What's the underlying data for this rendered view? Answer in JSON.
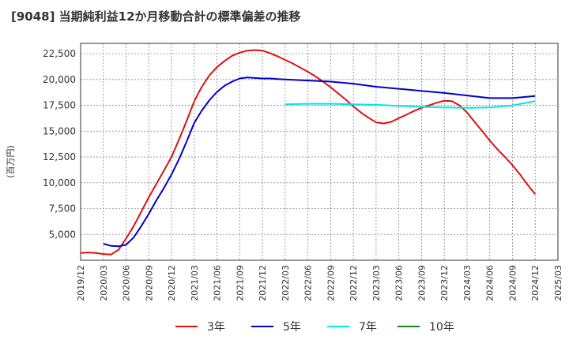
{
  "chart_data": {
    "type": "line",
    "title": "[9048]  当期純利益12か月移動合計の標準偏差の推移",
    "ylabel": "(百万円)",
    "xlabel": "",
    "ylim": [
      2500,
      23500
    ],
    "x_ticks": [
      "2019/12",
      "2020/03",
      "2020/06",
      "2020/09",
      "2020/12",
      "2021/03",
      "2021/06",
      "2021/09",
      "2021/12",
      "2022/03",
      "2022/06",
      "2022/09",
      "2022/12",
      "2023/03",
      "2023/06",
      "2023/09",
      "2023/12",
      "2024/03",
      "2024/06",
      "2024/09",
      "2024/12",
      "2025/03"
    ],
    "y_ticks": [
      5000,
      7500,
      10000,
      12500,
      15000,
      17500,
      20000,
      22500
    ],
    "y_tick_labels": [
      "5,000",
      "7,500",
      "10,000",
      "12,500",
      "15,000",
      "17,500",
      "20,000",
      "22,500"
    ],
    "grid": true,
    "legend_position": "bottom",
    "series": [
      {
        "name": "3年",
        "color": "#dd1111",
        "x": [
          "2019/12",
          "2020/01",
          "2020/02",
          "2020/03",
          "2020/04",
          "2020/05",
          "2020/06",
          "2020/07",
          "2020/08",
          "2020/09",
          "2020/10",
          "2020/11",
          "2020/12",
          "2021/01",
          "2021/02",
          "2021/03",
          "2021/04",
          "2021/05",
          "2021/06",
          "2021/07",
          "2021/08",
          "2021/09",
          "2021/10",
          "2021/11",
          "2021/12",
          "2022/01",
          "2022/02",
          "2022/03",
          "2022/04",
          "2022/05",
          "2022/06",
          "2022/07",
          "2022/08",
          "2022/09",
          "2022/10",
          "2022/11",
          "2022/12",
          "2023/01",
          "2023/02",
          "2023/03",
          "2023/04",
          "2023/05",
          "2023/06",
          "2023/07",
          "2023/08",
          "2023/09",
          "2023/10",
          "2023/11",
          "2023/12",
          "2024/01",
          "2024/02",
          "2024/03",
          "2024/04",
          "2024/05",
          "2024/06",
          "2024/07",
          "2024/08",
          "2024/09",
          "2024/10",
          "2024/11",
          "2024/12"
        ],
        "values": [
          3200,
          3250,
          3200,
          3100,
          3050,
          3500,
          4600,
          5800,
          7200,
          8600,
          9900,
          11200,
          12500,
          14200,
          16000,
          17900,
          19300,
          20400,
          21200,
          21800,
          22300,
          22600,
          22800,
          22850,
          22800,
          22550,
          22250,
          21900,
          21550,
          21150,
          20750,
          20300,
          19800,
          19250,
          18650,
          18050,
          17400,
          16800,
          16300,
          15850,
          15750,
          15900,
          16250,
          16600,
          16950,
          17250,
          17500,
          17750,
          17950,
          17900,
          17500,
          16800,
          15900,
          15000,
          14100,
          13250,
          12500,
          11700,
          10800,
          9800,
          8900
        ]
      },
      {
        "name": "5年",
        "color": "#0000cc",
        "x": [
          "2020/03",
          "2020/04",
          "2020/05",
          "2020/06",
          "2020/07",
          "2020/08",
          "2020/09",
          "2020/10",
          "2020/11",
          "2020/12",
          "2021/01",
          "2021/02",
          "2021/03",
          "2021/04",
          "2021/05",
          "2021/06",
          "2021/07",
          "2021/08",
          "2021/09",
          "2021/10",
          "2021/11",
          "2021/12",
          "2022/01",
          "2022/02",
          "2022/03",
          "2022/06",
          "2022/09",
          "2022/12",
          "2023/03",
          "2023/06",
          "2023/09",
          "2023/12",
          "2024/03",
          "2024/06",
          "2024/09",
          "2024/12"
        ],
        "values": [
          4100,
          3900,
          3850,
          4000,
          4700,
          5800,
          7000,
          8300,
          9500,
          10800,
          12300,
          14000,
          15800,
          17000,
          18000,
          18800,
          19400,
          19800,
          20100,
          20200,
          20150,
          20100,
          20100,
          20050,
          20000,
          19900,
          19800,
          19600,
          19300,
          19100,
          18900,
          18700,
          18450,
          18200,
          18200,
          18400
        ]
      },
      {
        "name": "7年",
        "color": "#00e5e5",
        "x": [
          "2022/03",
          "2022/06",
          "2022/09",
          "2022/12",
          "2023/03",
          "2023/06",
          "2023/09",
          "2023/12",
          "2024/03",
          "2024/06",
          "2024/09",
          "2024/12"
        ],
        "values": [
          17600,
          17650,
          17650,
          17600,
          17550,
          17450,
          17350,
          17300,
          17250,
          17300,
          17500,
          17900
        ]
      },
      {
        "name": "10年",
        "color": "#118811",
        "x": [],
        "values": []
      }
    ]
  }
}
